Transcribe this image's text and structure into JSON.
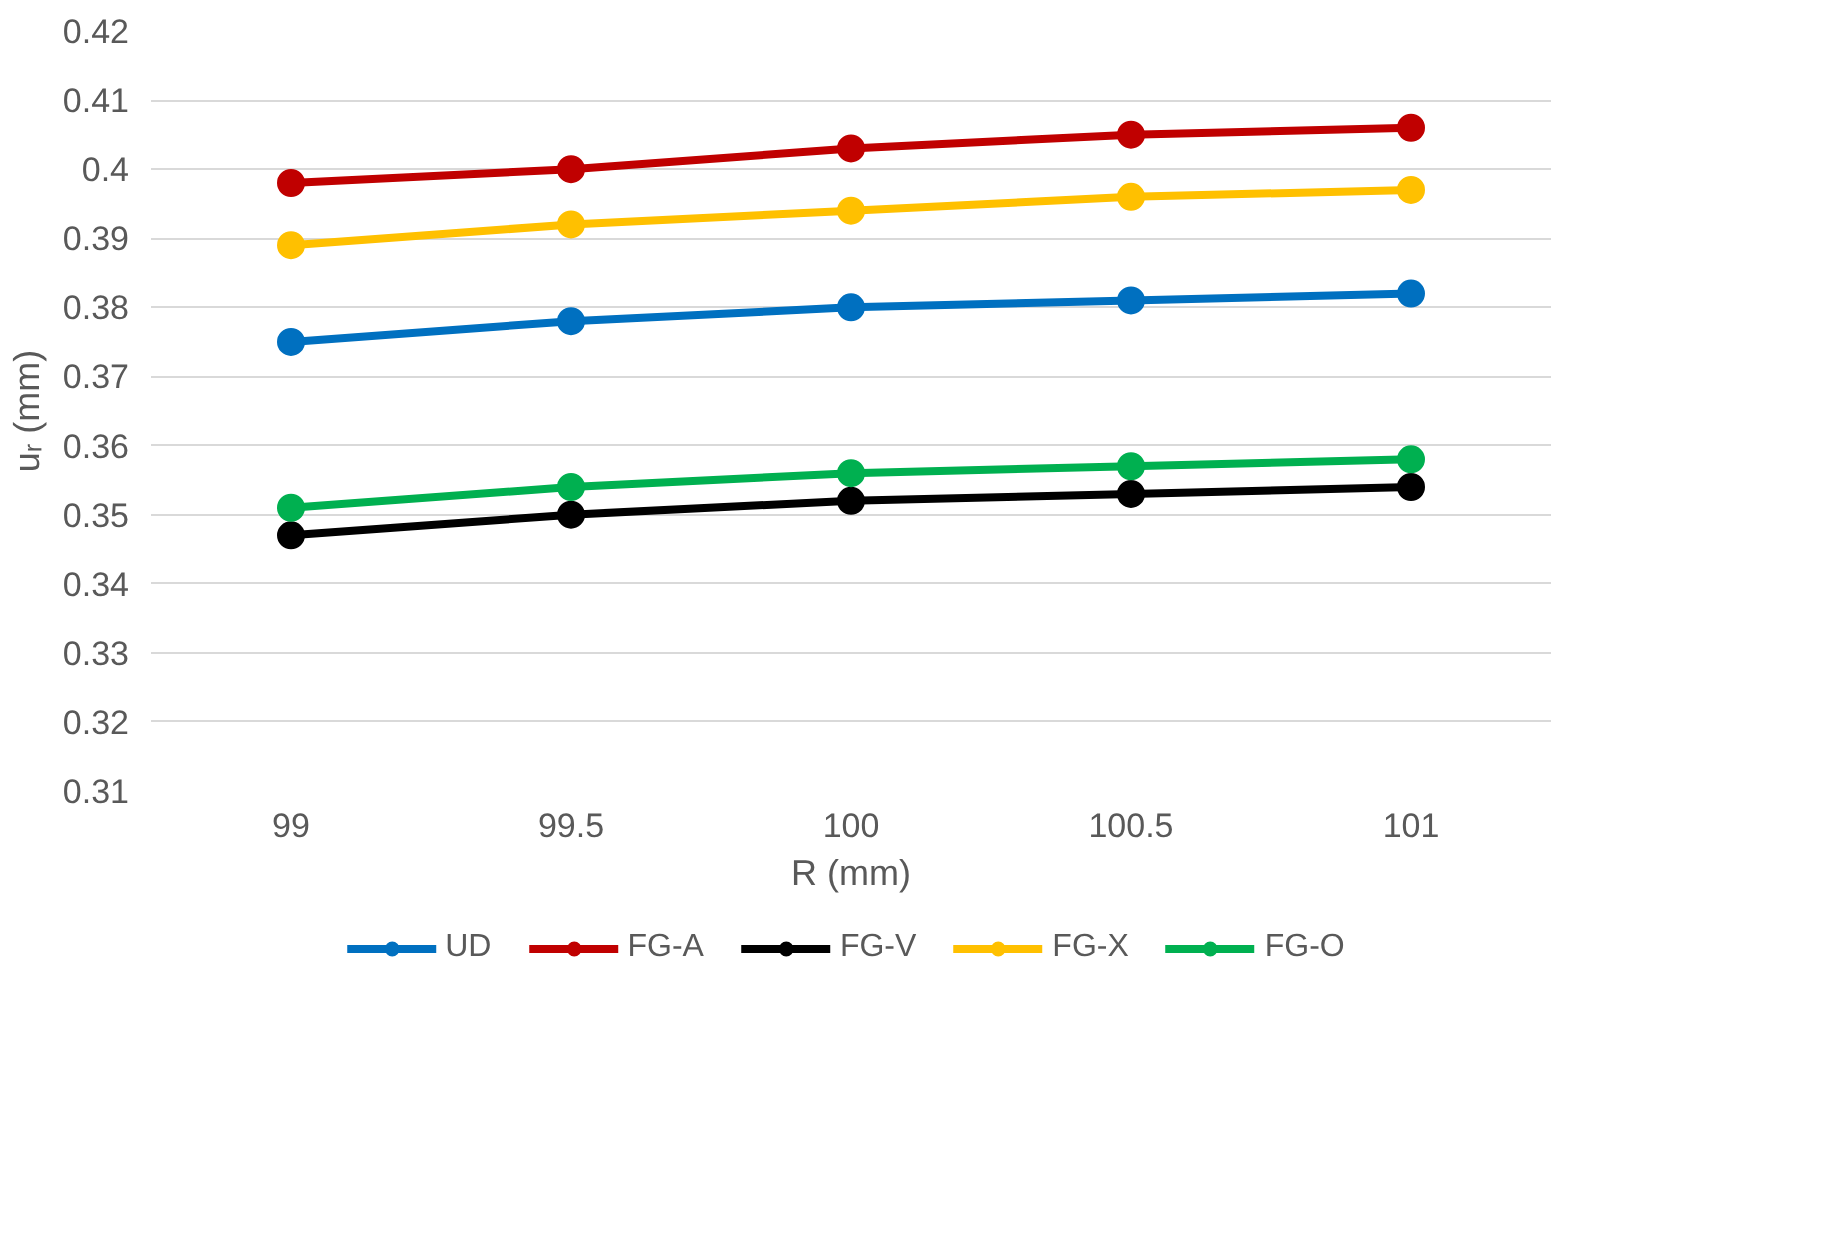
{
  "chart_data": {
    "type": "line",
    "xlabel": "R (mm)",
    "ylabel": "uᵣ (mm)",
    "categories": [
      "99",
      "99.5",
      "100",
      "100.5",
      "101"
    ],
    "series": [
      {
        "name": "UD",
        "color": "#0070c0",
        "values": [
          0.375,
          0.378,
          0.38,
          0.381,
          0.382
        ]
      },
      {
        "name": "FG-A",
        "color": "#c00000",
        "values": [
          0.398,
          0.4,
          0.403,
          0.405,
          0.406
        ]
      },
      {
        "name": "FG-V",
        "color": "#000000",
        "values": [
          0.347,
          0.35,
          0.352,
          0.353,
          0.354
        ]
      },
      {
        "name": "FG-X",
        "color": "#ffc000",
        "values": [
          0.389,
          0.392,
          0.394,
          0.396,
          0.397
        ]
      },
      {
        "name": "FG-O",
        "color": "#00b050",
        "values": [
          0.351,
          0.354,
          0.356,
          0.357,
          0.358
        ]
      }
    ],
    "ylim": [
      0.31,
      0.42
    ],
    "yticks": [
      0.31,
      0.32,
      0.33,
      0.34,
      0.35,
      0.36,
      0.37,
      0.38,
      0.39,
      0.4,
      0.41,
      0.42
    ],
    "grid": "y",
    "legend": "bottom",
    "marker": "circle",
    "line_style": "solid"
  }
}
